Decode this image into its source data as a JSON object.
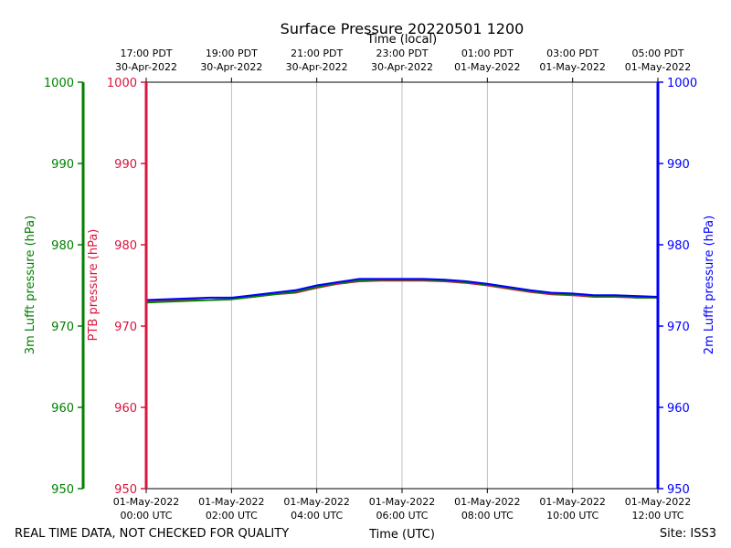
{
  "chart_data": {
    "type": "line",
    "title": "Surface Pressure 20220501 1200",
    "top_axis_label": "Time (local)",
    "xlabel": "Time (UTC)",
    "footer_left": "REAL TIME DATA, NOT CHECKED FOR QUALITY",
    "footer_right": "Site: ISS3",
    "x_range_hours": [
      0,
      12
    ],
    "ylim": [
      950,
      1000
    ],
    "y_ticks": [
      950,
      960,
      970,
      980,
      990,
      1000
    ],
    "bottom_ticks": [
      {
        "hour": 0,
        "line1": "01-May-2022",
        "line2": "00:00 UTC"
      },
      {
        "hour": 2,
        "line1": "01-May-2022",
        "line2": "02:00 UTC"
      },
      {
        "hour": 4,
        "line1": "01-May-2022",
        "line2": "04:00 UTC"
      },
      {
        "hour": 6,
        "line1": "01-May-2022",
        "line2": "06:00 UTC"
      },
      {
        "hour": 8,
        "line1": "01-May-2022",
        "line2": "08:00 UTC"
      },
      {
        "hour": 10,
        "line1": "01-May-2022",
        "line2": "10:00 UTC"
      },
      {
        "hour": 12,
        "line1": "01-May-2022",
        "line2": "12:00 UTC"
      }
    ],
    "top_ticks": [
      {
        "hour": 0,
        "line1": "17:00 PDT",
        "line2": "30-Apr-2022"
      },
      {
        "hour": 2,
        "line1": "19:00 PDT",
        "line2": "30-Apr-2022"
      },
      {
        "hour": 4,
        "line1": "21:00 PDT",
        "line2": "30-Apr-2022"
      },
      {
        "hour": 6,
        "line1": "23:00 PDT",
        "line2": "30-Apr-2022"
      },
      {
        "hour": 8,
        "line1": "01:00 PDT",
        "line2": "01-May-2022"
      },
      {
        "hour": 10,
        "line1": "03:00 PDT",
        "line2": "01-May-2022"
      },
      {
        "hour": 12,
        "line1": "05:00 PDT",
        "line2": "01-May-2022"
      }
    ],
    "axes": [
      {
        "id": "lufft3m",
        "label": "3m Lufft pressure (hPa)",
        "color": "#008000",
        "position": "far-left"
      },
      {
        "id": "ptb",
        "label": "PTB pressure (hPa)",
        "color": "#dc143c",
        "position": "left"
      },
      {
        "id": "lufft2m",
        "label": "2m Lufft pressure (hPa)",
        "color": "#0000ff",
        "position": "right"
      }
    ],
    "series": [
      {
        "name": "PTB pressure",
        "color": "#dc143c",
        "x": [
          0,
          0.5,
          1,
          1.5,
          2,
          2.5,
          3,
          3.5,
          4,
          4.5,
          5,
          5.5,
          6,
          6.5,
          7,
          7.5,
          8,
          8.5,
          9,
          9.5,
          10,
          10.5,
          11,
          11.5,
          12
        ],
        "values": [
          973.0,
          973.1,
          973.2,
          973.2,
          973.3,
          973.6,
          973.9,
          974.1,
          974.7,
          975.2,
          975.5,
          975.6,
          975.6,
          975.6,
          975.5,
          975.3,
          975.0,
          974.6,
          974.2,
          973.9,
          973.8,
          973.6,
          973.6,
          973.5,
          973.5
        ]
      },
      {
        "name": "3m Lufft pressure",
        "color": "#008000",
        "x": [
          0,
          0.5,
          1,
          1.5,
          2,
          2.5,
          3,
          3.5,
          4,
          4.5,
          5,
          5.5,
          6,
          6.5,
          7,
          7.5,
          8,
          8.5,
          9,
          9.5,
          10,
          10.5,
          11,
          11.5,
          12
        ],
        "values": [
          972.9,
          973.0,
          973.1,
          973.2,
          973.3,
          973.6,
          973.9,
          974.2,
          974.8,
          975.3,
          975.6,
          975.7,
          975.7,
          975.7,
          975.6,
          975.4,
          975.1,
          974.7,
          974.3,
          974.0,
          973.9,
          973.7,
          973.7,
          973.5,
          973.5
        ]
      },
      {
        "name": "2m Lufft pressure",
        "color": "#0000ff",
        "x": [
          0,
          0.5,
          1,
          1.5,
          2,
          2.5,
          3,
          3.5,
          4,
          4.5,
          5,
          5.5,
          6,
          6.5,
          7,
          7.5,
          8,
          8.5,
          9,
          9.5,
          10,
          10.5,
          11,
          11.5,
          12
        ],
        "values": [
          973.2,
          973.3,
          973.4,
          973.5,
          973.5,
          973.8,
          974.1,
          974.4,
          975.0,
          975.4,
          975.8,
          975.8,
          975.8,
          975.8,
          975.7,
          975.5,
          975.2,
          974.8,
          974.4,
          974.1,
          974.0,
          973.8,
          973.8,
          973.7,
          973.6
        ]
      }
    ]
  }
}
